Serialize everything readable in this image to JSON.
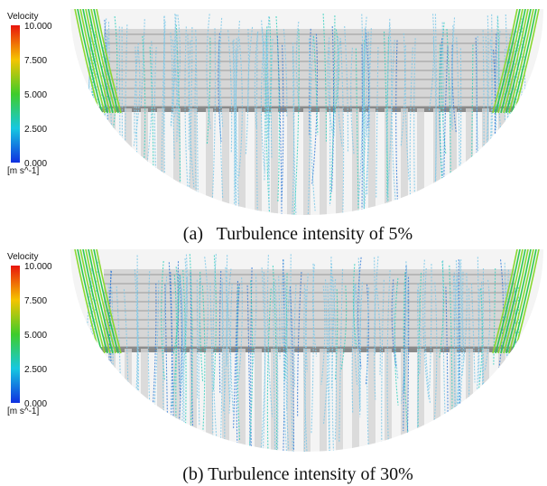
{
  "panels": [
    {
      "colorbar": {
        "title": "Velocity",
        "ticks": [
          "10.000",
          "7.500",
          "5.000",
          "2.500",
          "0.000"
        ],
        "unit": "[m s^-1]"
      },
      "caption": "(a)   Turbulence intensity of 5%"
    },
    {
      "colorbar": {
        "title": "Velocity",
        "ticks": [
          "10.000",
          "7.500",
          "5.000",
          "2.500",
          "0.000"
        ],
        "unit": "[m s^-1]"
      },
      "caption": "(b) Turbulence intensity of 30%"
    }
  ]
}
